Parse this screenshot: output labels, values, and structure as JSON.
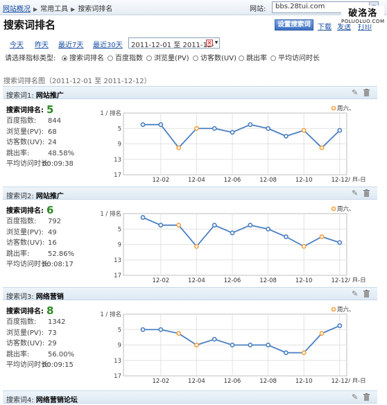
{
  "topbar": {
    "breadcrumbs": [
      "网站概况",
      "常用工具",
      "搜索词排名"
    ],
    "site_label": "网站:",
    "site_value": "bbs.28tui.com",
    "watermark_cn": "破洛洛",
    "watermark_en": "POLUOLUO.COM"
  },
  "header": {
    "title": "搜索词排名",
    "settings_button": "设置搜索词",
    "links": [
      "下载",
      "发送",
      "打印"
    ]
  },
  "range": {
    "links": [
      "今天",
      "昨天",
      "最近7天",
      "最近30天"
    ],
    "value": "2011-12-01 至 2011-12-"
  },
  "metrics": {
    "label": "请选择指标类型:",
    "options": [
      "搜索词排名",
      "百度指数",
      "浏览量(PV)",
      "访客数(UV)",
      "跳出率",
      "平均访问时长"
    ],
    "selected": 0
  },
  "section_title": "搜索词排名图（2011-12-01 至 2011-12-12）",
  "cards": [
    {
      "label": "搜索词1:",
      "keyword": "网站推广",
      "rank_label": "搜索词排名:",
      "rank": "5",
      "stats": [
        {
          "label": "百度指数:",
          "value": "844"
        },
        {
          "label": "浏览量(PV):",
          "value": "68"
        },
        {
          "label": "访客数(UV):",
          "value": "24"
        },
        {
          "label": "跳出率:",
          "value": "48.58%"
        },
        {
          "label": "平均访问时长:",
          "value": "00:09:38"
        }
      ]
    },
    {
      "label": "搜索词2:",
      "keyword": "网站推广",
      "rank_label": "搜索词排名:",
      "rank": "6",
      "stats": [
        {
          "label": "百度指数:",
          "value": "792"
        },
        {
          "label": "浏览量(PV):",
          "value": "49"
        },
        {
          "label": "访客数(UV):",
          "value": "16"
        },
        {
          "label": "跳出率:",
          "value": "52.86%"
        },
        {
          "label": "平均访问时长:",
          "value": "00:08:17"
        }
      ]
    },
    {
      "label": "搜索词3:",
      "keyword": "网络营销",
      "rank_label": "搜索词排名:",
      "rank": "8",
      "stats": [
        {
          "label": "百度指数:",
          "value": "1342"
        },
        {
          "label": "浏览量(PV):",
          "value": "73"
        },
        {
          "label": "访客数(UV):",
          "value": "29"
        },
        {
          "label": "跳出率:",
          "value": "56.00%"
        },
        {
          "label": "平均访问时长:",
          "value": "00:09:15"
        }
      ]
    },
    {
      "label": "搜索词4:",
      "keyword": "网络营销论坛"
    }
  ],
  "chart_data": [
    {
      "type": "line",
      "x": [
        "2011-12-01",
        "2011-12-02",
        "2011-12-03",
        "2011-12-04",
        "2011-12-05",
        "2011-12-06",
        "2011-12-07",
        "2011-12-08",
        "2011-12-09",
        "2011-12-10",
        "2011-12-11",
        "2011-12-12"
      ],
      "y": [
        4,
        4,
        10,
        5,
        5,
        6,
        4,
        5,
        7,
        5.5,
        10,
        5.5
      ],
      "weekend": [
        false,
        false,
        true,
        true,
        false,
        false,
        false,
        false,
        false,
        true,
        true,
        false
      ],
      "ylim": [
        1,
        17
      ],
      "y_inverted": true,
      "y_ticks": [
        "1 / 排名",
        "5",
        "9",
        "13",
        "17"
      ],
      "x_ticks": [
        "12-02",
        "12-04",
        "12-06",
        "12-08",
        "12-10",
        "12-12"
      ],
      "x_unit": "/ 月-日",
      "legend": "周六、",
      "grid": true,
      "line_color": "#4a7fc1",
      "weekend_color": "#f0a040"
    },
    {
      "type": "line",
      "x": [
        "2011-12-01",
        "2011-12-02",
        "2011-12-03",
        "2011-12-04",
        "2011-12-05",
        "2011-12-06",
        "2011-12-07",
        "2011-12-08",
        "2011-12-09",
        "2011-12-10",
        "2011-12-11",
        "2011-12-12"
      ],
      "y": [
        2,
        4,
        4,
        9.5,
        4,
        6,
        4,
        5,
        7,
        9.5,
        7,
        8.5
      ],
      "weekend": [
        false,
        false,
        true,
        true,
        false,
        false,
        false,
        false,
        false,
        true,
        true,
        false
      ],
      "ylim": [
        1,
        17
      ],
      "y_inverted": true,
      "y_ticks": [
        "1 / 排名",
        "5",
        "9",
        "13",
        "17"
      ],
      "x_ticks": [
        "12-02",
        "12-04",
        "12-06",
        "12-08",
        "12-10",
        "12-12"
      ],
      "x_unit": "/ 月-日",
      "legend": "周六、",
      "grid": true,
      "line_color": "#4a7fc1",
      "weekend_color": "#f0a040"
    },
    {
      "type": "line",
      "x": [
        "2011-12-01",
        "2011-12-02",
        "2011-12-03",
        "2011-12-04",
        "2011-12-05",
        "2011-12-06",
        "2011-12-07",
        "2011-12-08",
        "2011-12-09",
        "2011-12-10",
        "2011-12-11",
        "2011-12-12"
      ],
      "y": [
        5,
        5,
        6,
        9,
        7.5,
        9,
        9,
        9,
        11,
        11,
        6,
        4
      ],
      "weekend": [
        false,
        false,
        true,
        true,
        false,
        false,
        false,
        false,
        false,
        true,
        true,
        false
      ],
      "ylim": [
        1,
        17
      ],
      "y_inverted": true,
      "y_ticks": [
        "1 / 排名",
        "5",
        "9",
        "13",
        "17"
      ],
      "x_ticks": [
        "12-02",
        "12-04",
        "12-06",
        "12-08",
        "12-10",
        "12-12"
      ],
      "x_unit": "/ 月-日",
      "legend": "周六、",
      "grid": true,
      "line_color": "#4a7fc1",
      "weekend_color": "#f0a040"
    }
  ]
}
